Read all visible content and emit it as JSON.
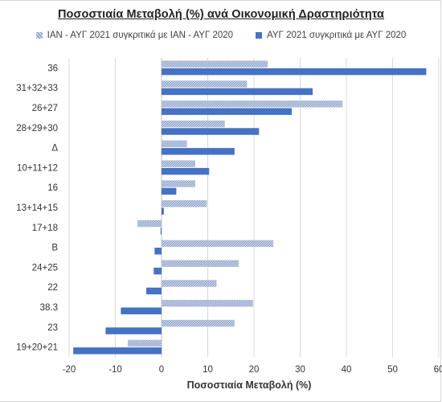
{
  "chart_data": {
    "type": "bar",
    "orientation": "horizontal",
    "title": "Ποσοστιαία Μεταβολή (%) ανά Οικονομική Δραστηριότητα",
    "xlabel": "Ποσοστιαία Μεταβολή (%)",
    "ylabel": "",
    "xlim": [
      -20,
      60
    ],
    "x_ticks": [
      -20,
      -10,
      0,
      10,
      20,
      30,
      40,
      50,
      60
    ],
    "grid": true,
    "legend_position": "top",
    "categories": [
      "36",
      "31+32+33",
      "26+27",
      "28+29+30",
      "Δ",
      "10+11+12",
      "16",
      "13+14+15",
      "17+18",
      "Β",
      "24+25",
      "22",
      "38.3",
      "23",
      "19+20+21"
    ],
    "series": [
      {
        "name": "ΙΑΝ - ΑΥΓ 2021 συγκριτικά με ΙΑΝ - ΑΥΓ 2020",
        "color": "#a9b8dc",
        "pattern": "hatched",
        "values": [
          23,
          18.5,
          39.2,
          13.7,
          5.5,
          7.3,
          7.3,
          9.8,
          -5.2,
          24.2,
          16.7,
          11.9,
          19.8,
          15.8,
          -7.3
        ]
      },
      {
        "name": "ΑΥΓ 2021 συγκριτικά με ΑΥΓ 2020",
        "color": "#4472c4",
        "pattern": "solid",
        "values": [
          57.3,
          32.7,
          28.2,
          21.1,
          15.8,
          10.3,
          3.2,
          0.5,
          -0.2,
          -1.5,
          -1.7,
          -3.3,
          -8.8,
          -12.1,
          -19.1
        ]
      }
    ]
  }
}
